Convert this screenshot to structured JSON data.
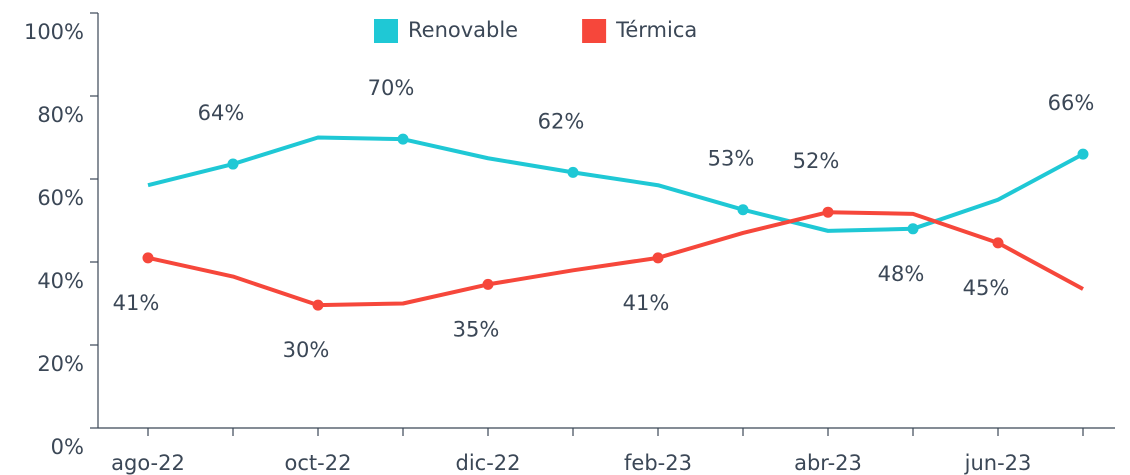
{
  "chart_data": {
    "type": "line",
    "categories": [
      "ago-22",
      null,
      "oct-22",
      null,
      "dic-22",
      null,
      "feb-23",
      null,
      "abr-23",
      null,
      "jun-23",
      null
    ],
    "series": [
      {
        "name": "Renovable",
        "color": "#1fc8d5",
        "values": [
          58.5,
          63.6,
          70,
          69.6,
          65,
          61.6,
          58.5,
          52.6,
          47.5,
          48,
          55,
          66
        ],
        "value_labels": [
          null,
          "64%",
          null,
          "70%",
          null,
          "62%",
          null,
          "53%",
          null,
          "48%",
          null,
          "66%"
        ]
      },
      {
        "name": "Térmica",
        "color": "#f6473b",
        "values": [
          41,
          36.5,
          29.6,
          30,
          34.6,
          38,
          41,
          47,
          52,
          51.6,
          44.6,
          33.5
        ],
        "value_labels": [
          "41%",
          null,
          "30%",
          null,
          "35%",
          null,
          "41%",
          null,
          "52%",
          null,
          "45%",
          null
        ]
      }
    ],
    "ylim": [
      0,
      100
    ],
    "yticks": [
      {
        "value": 0,
        "label": "0%"
      },
      {
        "value": 20,
        "label": "20%"
      },
      {
        "value": 40,
        "label": "40%"
      },
      {
        "value": 60,
        "label": "60%"
      },
      {
        "value": 80,
        "label": "80%"
      },
      {
        "value": 100,
        "label": "100%"
      }
    ],
    "legend": "top"
  }
}
